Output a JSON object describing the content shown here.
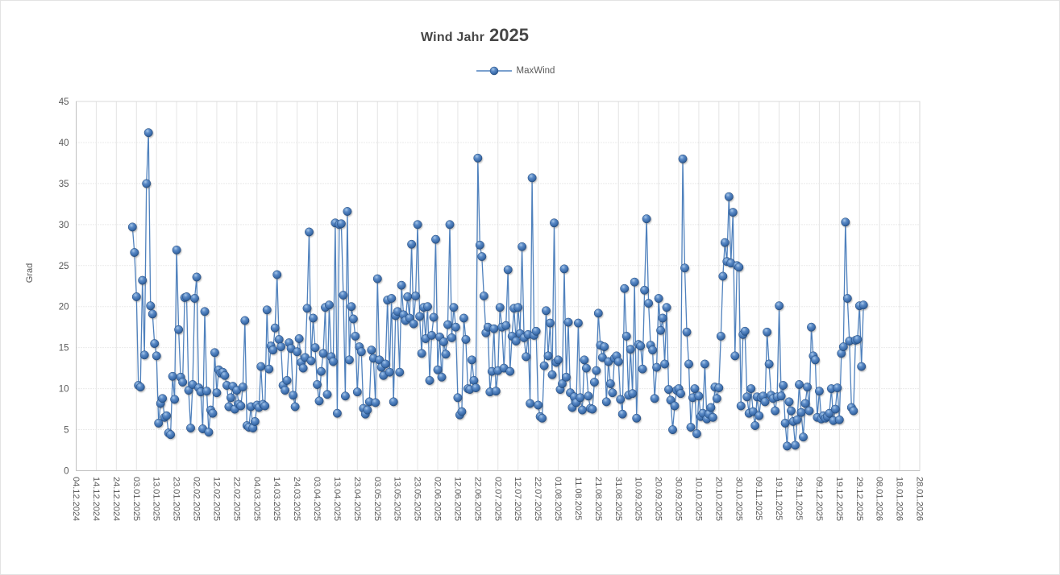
{
  "title": {
    "part1": "Wind Jahr",
    "part2": "2025"
  },
  "legend": {
    "label": "MaxWind"
  },
  "y_axis": {
    "title": "Grad",
    "min": 0,
    "max": 45,
    "step": 5,
    "tick_labels": [
      "0",
      "5",
      "10",
      "15",
      "20",
      "25",
      "30",
      "35",
      "40",
      "45"
    ]
  },
  "x_axis": {
    "tick_labels": [
      "04.12.2024",
      "14.12.2024",
      "24.12.2024",
      "03.01.2025",
      "13.01.2025",
      "23.01.2025",
      "02.02.2025",
      "12.02.2025",
      "22.02.2025",
      "04.03.2025",
      "14.03.2025",
      "24.03.2025",
      "03.04.2025",
      "13.04.2025",
      "23.04.2025",
      "03.05.2025",
      "13.05.2025",
      "23.05.2025",
      "02.06.2025",
      "12.06.2025",
      "22.06.2025",
      "02.07.2025",
      "12.07.2025",
      "22.07.2025",
      "01.08.2025",
      "11.08.2025",
      "21.08.2025",
      "31.08.2025",
      "10.09.2025",
      "20.09.2025",
      "30.09.2025",
      "10.10.2025",
      "20.10.2025",
      "30.10.2025",
      "09.11.2025",
      "19.11.2025",
      "29.11.2025",
      "09.12.2025",
      "19.12.2025",
      "29.12.2025",
      "08.01.2026",
      "18.01.2026",
      "28.01.2026"
    ]
  },
  "colors": {
    "line": "#4f81bd",
    "marker_hi": "#a9c9ea",
    "marker_mid": "#3e6fae",
    "marker_dark": "#27507f",
    "marker_rim": "#1e4678",
    "grid_v": "#e4e4e4",
    "grid_h": "#d6d6d6",
    "plot_border": "#d9d9d9",
    "axis_line": "#bfbfbf",
    "tick_text": "#595959"
  },
  "chart_data": {
    "type": "line",
    "title": "Wind Jahr 2025",
    "xlabel": "",
    "ylabel": "Grad",
    "ylim": [
      0,
      45
    ],
    "x_range": [
      "04.12.2024",
      "28.01.2026"
    ],
    "x_tick_interval_days": 10,
    "grid": true,
    "legend_position": "top",
    "series": [
      {
        "name": "MaxWind",
        "x_start_date": "01.01.2025",
        "x_frequency": "daily",
        "values": [
          29.7,
          26.6,
          21.2,
          10.4,
          10.2,
          23.2,
          14.1,
          35.0,
          41.2,
          20.1,
          19.1,
          15.5,
          14.0,
          5.8,
          8.2,
          8.8,
          6.5,
          6.7,
          4.6,
          4.4,
          11.5,
          8.7,
          26.9,
          17.2,
          11.4,
          10.8,
          21.1,
          21.2,
          9.8,
          5.2,
          10.5,
          21.0,
          23.6,
          10.1,
          9.6,
          5.1,
          19.4,
          9.7,
          4.7,
          7.4,
          7.0,
          14.4,
          9.5,
          12.3,
          11.9,
          12.0,
          11.6,
          10.4,
          7.8,
          8.9,
          10.3,
          7.5,
          9.8,
          8.1,
          7.9,
          10.2,
          18.3,
          5.5,
          5.3,
          7.8,
          5.2,
          6.0,
          8.0,
          7.7,
          12.7,
          8.1,
          7.9,
          19.6,
          12.4,
          15.2,
          14.7,
          17.4,
          23.9,
          16.0,
          15.1,
          10.4,
          9.8,
          11.0,
          15.6,
          14.9,
          9.2,
          7.8,
          14.5,
          16.1,
          13.2,
          12.5,
          13.8,
          19.8,
          29.1,
          13.4,
          18.6,
          15.0,
          10.5,
          8.5,
          12.1,
          14.3,
          19.9,
          9.3,
          20.2,
          13.9,
          13.3,
          30.2,
          7.0,
          30.0,
          30.1,
          21.4,
          9.1,
          31.6,
          13.5,
          20.0,
          18.5,
          16.4,
          9.6,
          15.1,
          14.5,
          7.6,
          6.9,
          7.4,
          8.4,
          14.7,
          13.7,
          8.3,
          23.4,
          13.5,
          12.6,
          11.6,
          13.0,
          20.8,
          12.0,
          21.0,
          8.4,
          18.9,
          19.4,
          12.0,
          22.6,
          19.0,
          18.3,
          21.2,
          18.6,
          27.6,
          17.9,
          21.3,
          30.0,
          18.8,
          14.3,
          19.9,
          16.1,
          20.0,
          11.0,
          16.5,
          18.7,
          28.2,
          12.3,
          16.3,
          11.4,
          15.7,
          14.2,
          17.8,
          30.0,
          16.2,
          19.9,
          17.5,
          8.9,
          6.8,
          7.2,
          18.6,
          16.0,
          10.0,
          9.9,
          13.5,
          11.0,
          10.1,
          38.1,
          27.5,
          26.1,
          21.3,
          16.8,
          17.5,
          9.6,
          12.1,
          17.3,
          9.7,
          12.2,
          19.9,
          17.5,
          12.5,
          17.7,
          24.5,
          12.1,
          16.4,
          19.8,
          15.8,
          19.9,
          16.7,
          27.3,
          16.2,
          13.9,
          16.6,
          8.2,
          35.7,
          16.5,
          17.0,
          8.0,
          6.6,
          6.4,
          12.8,
          19.5,
          14.0,
          18.0,
          11.7,
          30.2,
          13.2,
          13.5,
          9.9,
          10.6,
          24.6,
          11.4,
          18.1,
          9.5,
          7.7,
          9.0,
          8.3,
          18.0,
          8.9,
          7.4,
          13.5,
          12.5,
          9.1,
          7.6,
          7.5,
          10.8,
          12.2,
          19.2,
          15.3,
          13.8,
          15.1,
          8.4,
          13.3,
          10.6,
          9.5,
          13.7,
          14.0,
          13.3,
          8.7,
          6.9,
          22.2,
          16.4,
          9.2,
          14.8,
          9.4,
          23.0,
          6.4,
          15.4,
          15.2,
          12.4,
          22.0,
          30.7,
          20.4,
          15.3,
          14.7,
          8.8,
          12.6,
          21.0,
          17.1,
          18.6,
          13.0,
          19.9,
          9.9,
          8.6,
          5.0,
          7.9,
          9.8,
          10.0,
          9.4,
          38.0,
          24.7,
          16.9,
          13.0,
          5.3,
          8.9,
          10.0,
          4.5,
          9.1,
          6.6,
          7.0,
          13.0,
          6.3,
          6.9,
          7.7,
          6.5,
          10.2,
          8.8,
          10.1,
          16.4,
          23.7,
          27.8,
          25.5,
          33.4,
          25.3,
          31.5,
          14.0,
          25.0,
          24.8,
          7.9,
          16.6,
          17.0,
          9.0,
          7.0,
          10.0,
          7.2,
          5.5,
          9.0,
          6.7,
          8.9,
          9.1,
          8.4,
          16.9,
          13.0,
          9.2,
          8.8,
          7.3,
          9.0,
          20.1,
          9.1,
          10.4,
          5.8,
          3.0,
          8.4,
          7.3,
          6.0,
          3.1,
          6.2,
          10.5,
          7.1,
          4.1,
          8.2,
          10.2,
          7.3,
          17.5,
          14.0,
          13.5,
          6.5,
          9.7,
          6.3,
          6.7,
          6.4,
          6.6,
          7.0,
          10.0,
          6.1,
          7.5,
          10.1,
          6.2,
          14.3,
          15.1,
          30.3,
          21.0,
          15.8,
          7.7,
          7.3,
          15.9,
          16.0,
          20.1,
          12.7,
          20.2
        ]
      }
    ]
  }
}
